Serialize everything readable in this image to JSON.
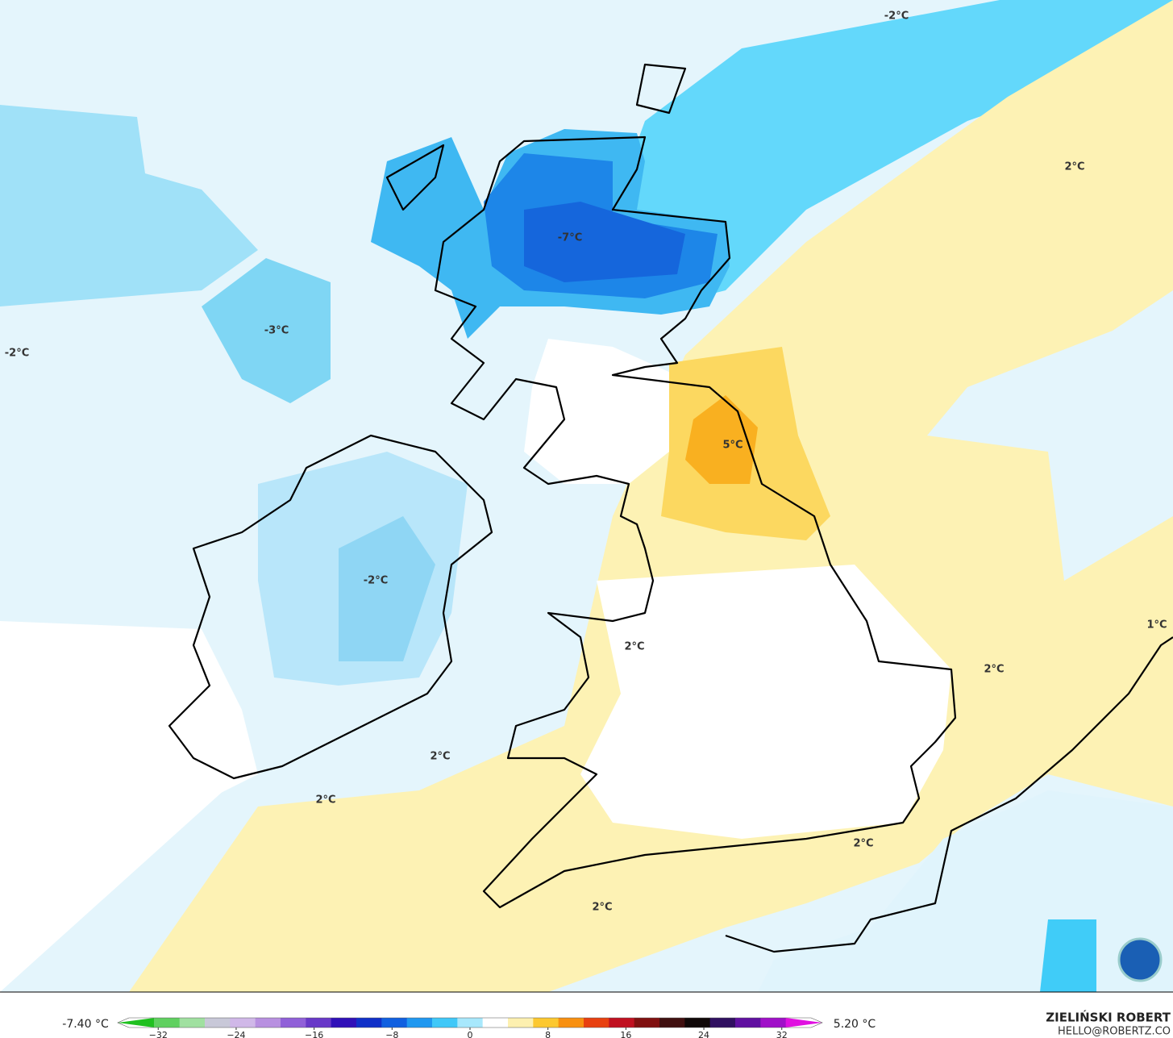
{
  "map": {
    "labels": [
      "-2°C",
      "2°C",
      "-7°C",
      "-3°C",
      "-2°C",
      "5°C",
      "-2°C",
      "2°C",
      "1°C",
      "2°C",
      "2°C",
      "2°C",
      "2°C",
      "2°C"
    ],
    "colorbar": {
      "min_label": "-7.40 °C",
      "max_label": "5.20 °C",
      "range": [
        -35,
        35
      ],
      "ticks": [
        {
          "value": -32,
          "label": "−32"
        },
        {
          "value": -24,
          "label": "−24"
        },
        {
          "value": -16,
          "label": "−16"
        },
        {
          "value": -8,
          "label": "−8"
        },
        0,
        8,
        16,
        24,
        32
      ],
      "colors": [
        "#20c020",
        "#60d060",
        "#a0e0a0",
        "#c8c8d8",
        "#d0b8e8",
        "#b890e0",
        "#9060d8",
        "#6838c8",
        "#3010b8",
        "#1030c8",
        "#1060e0",
        "#2098f0",
        "#40c8f8",
        "#a8e8fc",
        "#ffffff",
        "#fdf0b0",
        "#fcc830",
        "#f89010",
        "#e84010",
        "#c01020",
        "#801010",
        "#401010",
        "#100808",
        "#301060",
        "#6010a0",
        "#a010c8",
        "#e010e0"
      ]
    },
    "author": "ZIELIŃSKI ROBERT",
    "contact": "HELLO@ROBERTZ.CO"
  }
}
